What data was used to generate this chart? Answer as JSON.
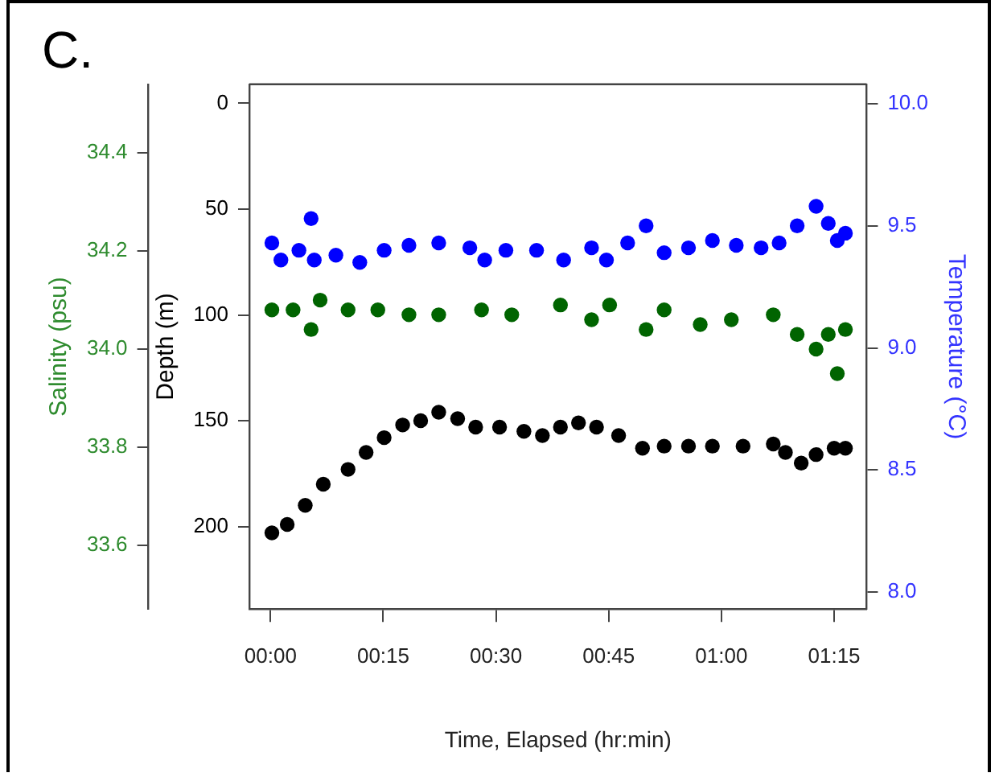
{
  "chart_data": {
    "type": "scatter",
    "title": "C.",
    "xlabel": "Time, Elapsed (hr:min)",
    "ylabel": "Depth (m)",
    "y2label": "Temperature (°C)",
    "y3label": "Salinity (psu)",
    "xlim": [
      -0.047,
      1.322
    ],
    "xticks": [
      {
        "value": 0,
        "label": "00:00"
      },
      {
        "value": 0.25,
        "label": "00:15"
      },
      {
        "value": 0.5,
        "label": "00:30"
      },
      {
        "value": 0.75,
        "label": "00:45"
      },
      {
        "value": 1,
        "label": "01:00"
      },
      {
        "value": 1.25,
        "label": "01:15"
      }
    ],
    "ylim": [
      239,
      -9
    ],
    "yticks": [
      0,
      50,
      100,
      150,
      200
    ],
    "y2lim": [
      7.93,
      10.08
    ],
    "y2ticks": [
      {
        "value": 8,
        "label": "8.0"
      },
      8.5,
      {
        "value": 9,
        "label": "9.0"
      },
      9.5,
      {
        "value": 10,
        "label": "10.0"
      }
    ],
    "y3lim": [
      33.47,
      34.54
    ],
    "y3ticks": [
      33.6,
      33.8,
      {
        "value": 34,
        "label": "34.0"
      },
      34.2,
      34.4
    ],
    "grid": false,
    "marker": "circle",
    "series": [
      {
        "color": "#000000",
        "axis": "y",
        "x": [
          0.003,
          0.037,
          0.077,
          0.117,
          0.172,
          0.212,
          0.252,
          0.293,
          0.333,
          0.373,
          0.415,
          0.455,
          0.508,
          0.562,
          0.603,
          0.643,
          0.683,
          0.723,
          0.772,
          0.825,
          0.873,
          0.927,
          0.98,
          1.048,
          1.115,
          1.142,
          1.177,
          1.21,
          1.25,
          1.275
        ],
        "values": [
          203,
          199,
          190,
          180,
          173,
          165,
          158,
          152,
          150,
          146,
          149,
          153,
          153,
          155,
          157,
          153,
          151,
          153,
          157,
          163,
          162,
          162,
          162,
          162,
          161,
          165,
          170,
          166,
          163,
          163
        ]
      },
      {
        "color": "#0000ff",
        "axis": "y2",
        "x": [
          0.003,
          0.023,
          0.063,
          0.09,
          0.097,
          0.145,
          0.198,
          0.252,
          0.307,
          0.373,
          0.442,
          0.475,
          0.522,
          0.59,
          0.65,
          0.712,
          0.745,
          0.792,
          0.833,
          0.873,
          0.927,
          0.98,
          1.033,
          1.088,
          1.128,
          1.168,
          1.21,
          1.237,
          1.257,
          1.275
        ],
        "values": [
          9.43,
          9.36,
          9.4,
          9.53,
          9.36,
          9.38,
          9.35,
          9.4,
          9.42,
          9.43,
          9.41,
          9.36,
          9.4,
          9.4,
          9.36,
          9.41,
          9.36,
          9.43,
          9.5,
          9.39,
          9.41,
          9.44,
          9.42,
          9.41,
          9.43,
          9.5,
          9.58,
          9.51,
          9.44,
          9.47
        ]
      },
      {
        "color": "#006400",
        "axis": "y3",
        "x": [
          0.003,
          0.05,
          0.09,
          0.11,
          0.172,
          0.238,
          0.307,
          0.373,
          0.468,
          0.535,
          0.643,
          0.712,
          0.752,
          0.833,
          0.873,
          0.953,
          1.022,
          1.115,
          1.168,
          1.21,
          1.237,
          1.257,
          1.275
        ],
        "values": [
          34.08,
          34.08,
          34.04,
          34.1,
          34.08,
          34.08,
          34.07,
          34.07,
          34.08,
          34.07,
          34.09,
          34.06,
          34.09,
          34.04,
          34.08,
          34.05,
          34.06,
          34.07,
          34.03,
          34.0,
          34.03,
          33.95,
          34.04
        ]
      }
    ]
  }
}
